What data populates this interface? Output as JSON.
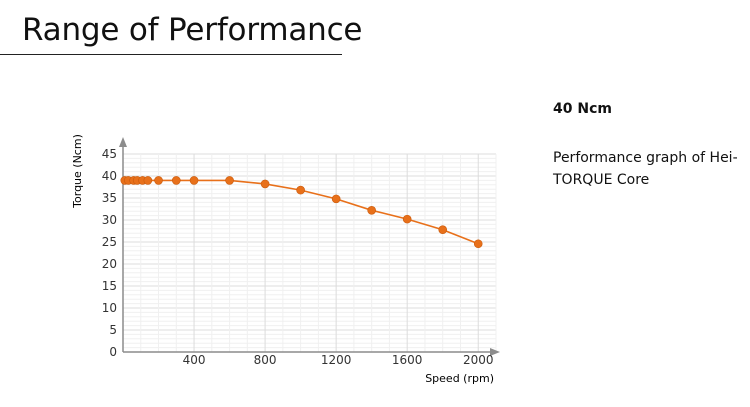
{
  "page": {
    "title": "Range of Performance"
  },
  "side_panel": {
    "heading": "40 Ncm",
    "description": "Performance graph of Hei-TORQUE Core"
  },
  "colors": {
    "series": "#e8701a",
    "axis": "#8c8c8c",
    "grid": "#e6e6e6",
    "text": "#333333"
  },
  "chart_data": {
    "type": "line",
    "xlabel": "Speed (rpm)",
    "ylabel": "Torque (Ncm)",
    "xlim": [
      0,
      2100
    ],
    "ylim": [
      0,
      45
    ],
    "x_ticks": [
      400,
      800,
      1200,
      1600,
      2000
    ],
    "y_ticks": [
      0,
      5,
      10,
      15,
      20,
      25,
      30,
      35,
      40,
      45
    ],
    "grid": true,
    "legend": "none",
    "series": [
      {
        "x": [
          10,
          30,
          60,
          80,
          110,
          140,
          200,
          300,
          400,
          600,
          800,
          1000,
          1200,
          1400,
          1600,
          1800,
          2000
        ],
        "y": [
          39,
          39,
          39,
          39,
          39,
          39,
          39,
          39,
          39,
          39,
          38.2,
          36.8,
          34.8,
          32.2,
          30.2,
          27.8,
          24.6
        ]
      }
    ]
  }
}
